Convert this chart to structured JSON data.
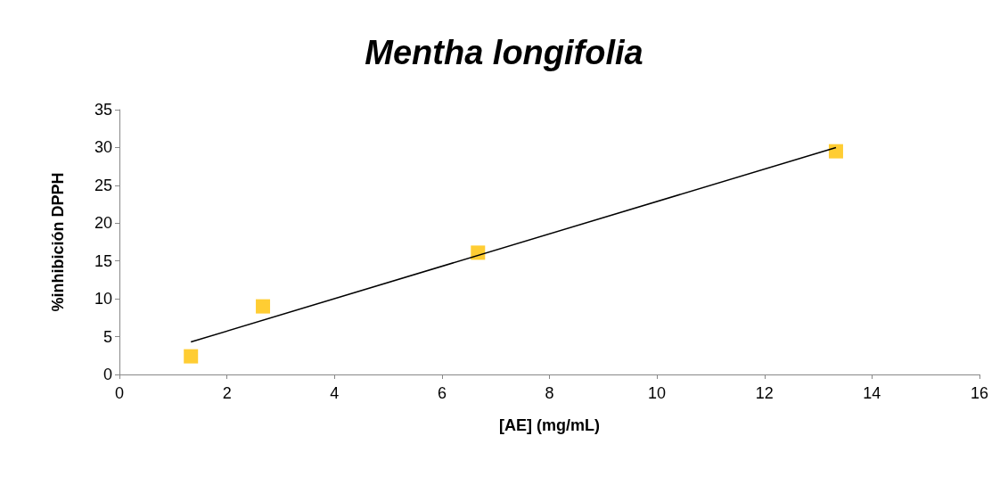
{
  "chart_data": {
    "type": "scatter",
    "title": "Mentha longifolia",
    "xlabel": "[AE] (mg/mL)",
    "ylabel": "%inhibición DPPH",
    "xlim": [
      0,
      16
    ],
    "xticks": [
      0,
      2,
      4,
      6,
      8,
      10,
      12,
      14,
      16
    ],
    "ylim": [
      0,
      35
    ],
    "yticks": [
      0,
      5,
      10,
      15,
      20,
      25,
      30,
      35
    ],
    "grid": false,
    "marker": "square",
    "series": [
      {
        "color": "#ffc000",
        "x": [
          1.33,
          2.67,
          6.67,
          13.33
        ],
        "values": [
          2.4,
          9.0,
          16.1,
          29.5
        ]
      },
      {
        "type": "line",
        "color": "#000000",
        "marker": "none",
        "line_style": "solid",
        "x": [
          1.33,
          13.33
        ],
        "values": [
          4.3,
          30.0
        ]
      }
    ]
  }
}
